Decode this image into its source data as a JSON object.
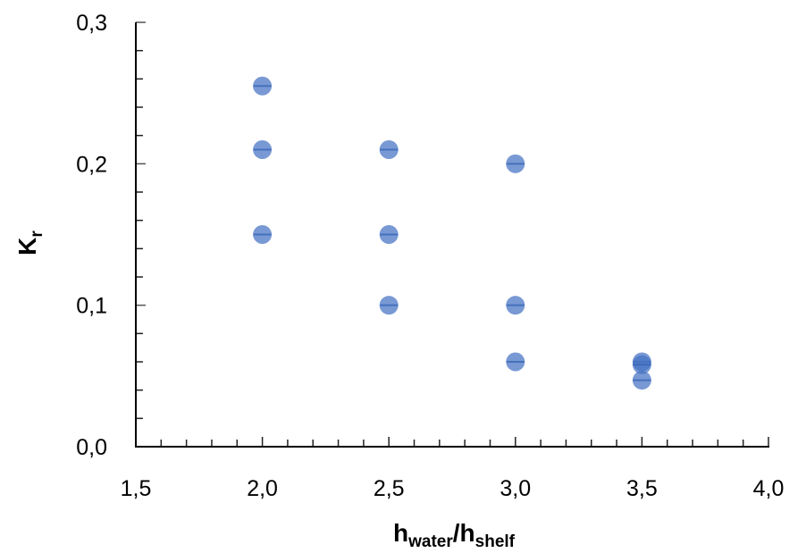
{
  "chart_data": {
    "type": "scatter",
    "title": "",
    "xlabel": "h_water/h_shelf",
    "xlabel_parts": {
      "main1": "h",
      "sub1": "water",
      "sep": "/",
      "main2": "h",
      "sub2": "shelf"
    },
    "ylabel": "K_r",
    "ylabel_parts": {
      "main": "K",
      "sub": "r"
    },
    "xlim": [
      1.5,
      4.0
    ],
    "ylim": [
      0.0,
      0.3
    ],
    "x_ticks": [
      "1,5",
      "2,0",
      "2,5",
      "3,0",
      "3,5",
      "4,0"
    ],
    "y_ticks": [
      "0,0",
      "0,1",
      "0,2",
      "0,3"
    ],
    "grid": false,
    "legend": null,
    "marker_color": "#4472C4",
    "series": [
      {
        "name": "Kr",
        "points": [
          {
            "x": 2.0,
            "y": 0.255
          },
          {
            "x": 2.0,
            "y": 0.21
          },
          {
            "x": 2.0,
            "y": 0.15
          },
          {
            "x": 2.5,
            "y": 0.21
          },
          {
            "x": 2.5,
            "y": 0.15
          },
          {
            "x": 2.5,
            "y": 0.1
          },
          {
            "x": 3.0,
            "y": 0.2
          },
          {
            "x": 3.0,
            "y": 0.1
          },
          {
            "x": 3.0,
            "y": 0.06
          },
          {
            "x": 3.5,
            "y": 0.06
          },
          {
            "x": 3.5,
            "y": 0.058
          },
          {
            "x": 3.5,
            "y": 0.047
          }
        ]
      }
    ]
  }
}
